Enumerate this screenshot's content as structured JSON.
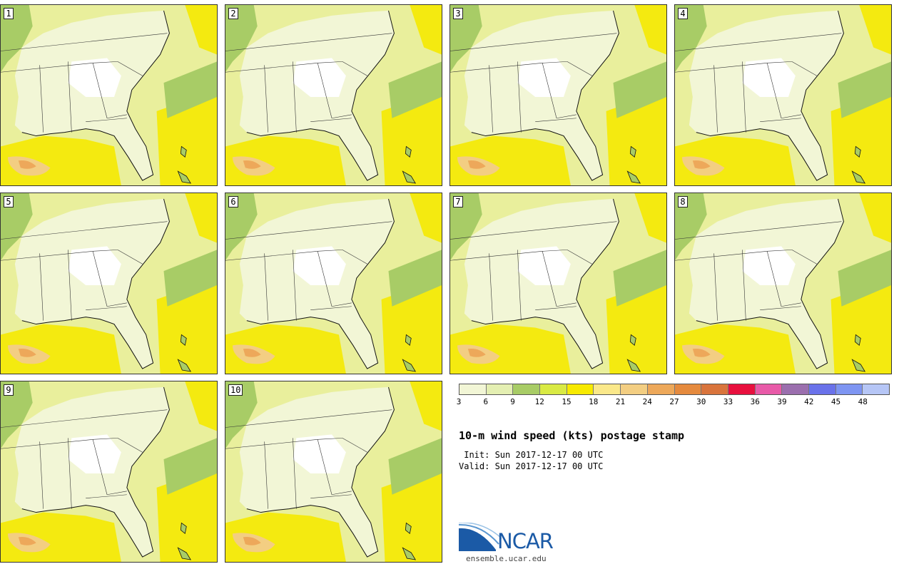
{
  "panels": [
    {
      "label": "1"
    },
    {
      "label": "2"
    },
    {
      "label": "3"
    },
    {
      "label": "4"
    },
    {
      "label": "5"
    },
    {
      "label": "6"
    },
    {
      "label": "7"
    },
    {
      "label": "8"
    },
    {
      "label": "9"
    },
    {
      "label": "10"
    }
  ],
  "legend": {
    "colors": [
      "#f2f6d6",
      "#e4efb2",
      "#a8cc66",
      "#d9ea44",
      "#f7ea00",
      "#fae88a",
      "#f3ce82",
      "#eda85a",
      "#e58a3e",
      "#d9743c",
      "#e8103e",
      "#e85aa8",
      "#9b6fae",
      "#6a72ea",
      "#7e95f2",
      "#b6c6f6"
    ],
    "ticks": [
      "3",
      "6",
      "9",
      "12",
      "15",
      "18",
      "21",
      "24",
      "27",
      "30",
      "33",
      "36",
      "39",
      "42",
      "45",
      "48"
    ]
  },
  "title": "10-m wind speed (kts) postage stamp",
  "init_line": " Init: Sun 2017-12-17 00 UTC",
  "valid_line": "Valid: Sun 2017-12-17 00 UTC",
  "logo": {
    "name": "NCAR",
    "url": "ensemble.ucar.edu"
  }
}
